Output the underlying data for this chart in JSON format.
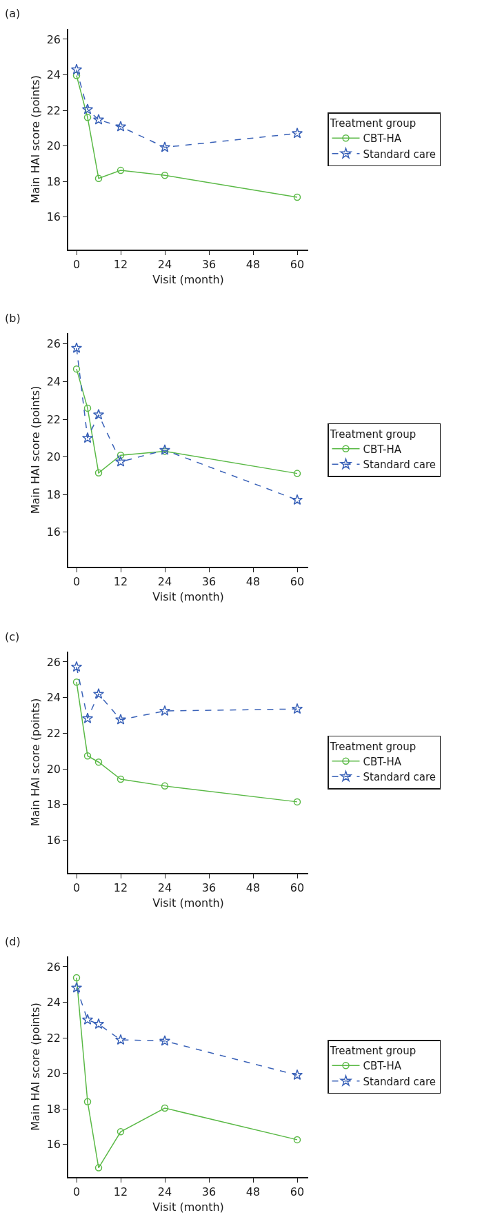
{
  "chart_data": [
    {
      "type": "line",
      "title": "(a)",
      "xlabel": "Visit (month)",
      "ylabel": "Main HAI score (points)",
      "legend_title": "Treatment group",
      "legend": "right",
      "xlim": [
        -2.25,
        63
      ],
      "ylim": [
        14.16,
        26.58
      ],
      "xticks": [
        0,
        12,
        24,
        36,
        48,
        60
      ],
      "yticks": [
        16,
        18,
        20,
        22,
        24,
        26
      ],
      "x": [
        0,
        3,
        6,
        12,
        24,
        60
      ],
      "series": [
        {
          "name": "CBT-HA",
          "color": "#5ab946",
          "marker": "circle",
          "line_style": "solid",
          "values": [
            23.96,
            21.6,
            18.17,
            18.62,
            18.34,
            17.11
          ]
        },
        {
          "name": "Standard care",
          "color": "#3a62b8",
          "marker": "star",
          "line_style": "dashed",
          "values": [
            24.29,
            22.05,
            21.47,
            21.08,
            19.92,
            20.7
          ]
        }
      ]
    },
    {
      "type": "line",
      "title": "(b)",
      "xlabel": "Visit (month)",
      "ylabel": "Main HAI score (points)",
      "legend_title": "Treatment group",
      "legend": "right",
      "xlim": [
        -2.25,
        63
      ],
      "ylim": [
        14.16,
        26.58
      ],
      "xticks": [
        0,
        12,
        24,
        36,
        48,
        60
      ],
      "yticks": [
        16,
        18,
        20,
        22,
        24,
        26
      ],
      "x": [
        0,
        3,
        6,
        12,
        24,
        60
      ],
      "series": [
        {
          "name": "CBT-HA",
          "color": "#5ab946",
          "marker": "circle",
          "line_style": "solid",
          "values": [
            24.67,
            22.59,
            19.15,
            20.09,
            20.3,
            19.12
          ]
        },
        {
          "name": "Standard care",
          "color": "#3a62b8",
          "marker": "star",
          "line_style": "dashed",
          "values": [
            25.78,
            21.0,
            22.24,
            19.74,
            20.36,
            17.71
          ]
        }
      ]
    },
    {
      "type": "line",
      "title": "(c)",
      "xlabel": "Visit (month)",
      "ylabel": "Main HAI score (points)",
      "legend_title": "Treatment group",
      "legend": "right",
      "xlim": [
        -2.25,
        63
      ],
      "ylim": [
        14.16,
        26.58
      ],
      "xticks": [
        0,
        12,
        24,
        36,
        48,
        60
      ],
      "yticks": [
        16,
        18,
        20,
        22,
        24,
        26
      ],
      "x": [
        0,
        3,
        6,
        12,
        24,
        60
      ],
      "series": [
        {
          "name": "CBT-HA",
          "color": "#5ab946",
          "marker": "circle",
          "line_style": "solid",
          "values": [
            24.87,
            20.73,
            20.38,
            19.42,
            19.04,
            18.15
          ]
        },
        {
          "name": "Standard care",
          "color": "#3a62b8",
          "marker": "star",
          "line_style": "dashed",
          "values": [
            25.72,
            22.83,
            24.2,
            22.76,
            23.25,
            23.36
          ]
        }
      ]
    },
    {
      "type": "line",
      "title": "(d)",
      "xlabel": "Visit (month)",
      "ylabel": "Main HAI score (points)",
      "legend_title": "Treatment group",
      "legend": "right",
      "xlim": [
        -2.25,
        63
      ],
      "ylim": [
        14.16,
        26.58
      ],
      "xticks": [
        0,
        12,
        24,
        36,
        48,
        60
      ],
      "yticks": [
        16,
        18,
        20,
        22,
        24,
        26
      ],
      "x": [
        0,
        3,
        6,
        12,
        24,
        60
      ],
      "series": [
        {
          "name": "CBT-HA",
          "color": "#5ab946",
          "marker": "circle",
          "line_style": "solid",
          "values": [
            25.38,
            18.4,
            14.68,
            16.71,
            18.04,
            16.26
          ]
        },
        {
          "name": "Standard care",
          "color": "#3a62b8",
          "marker": "star",
          "line_style": "dashed",
          "values": [
            24.81,
            23.01,
            22.77,
            21.88,
            21.82,
            19.9
          ]
        }
      ]
    }
  ]
}
